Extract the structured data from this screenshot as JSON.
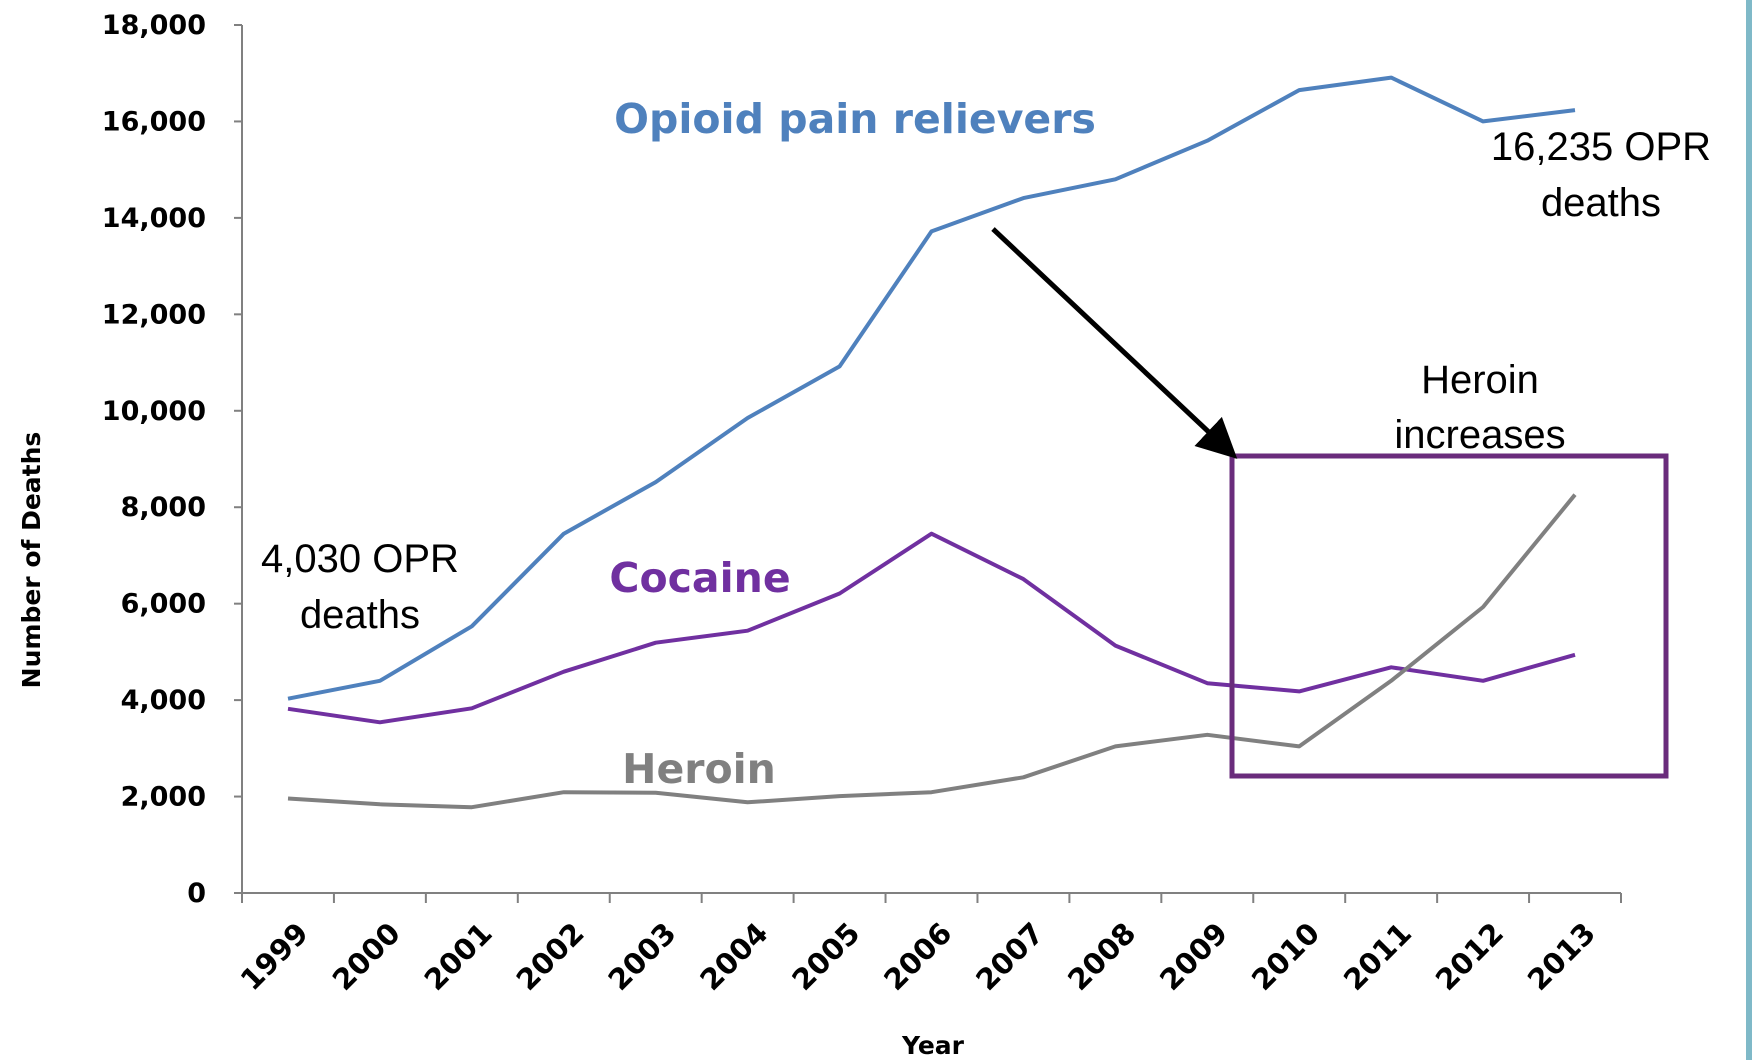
{
  "chart_data": {
    "type": "line",
    "title": "",
    "xlabel": "Year",
    "ylabel": "Number of Deaths",
    "categories": [
      "1999",
      "2000",
      "2001",
      "2002",
      "2003",
      "2004",
      "2005",
      "2006",
      "2007",
      "2008",
      "2009",
      "2010",
      "2011",
      "2012",
      "2013"
    ],
    "ylim": [
      0,
      18000
    ],
    "yticks": [
      "0",
      "2,000",
      "4,000",
      "6,000",
      "8,000",
      "10,000",
      "12,000",
      "14,000",
      "16,000",
      "18,000"
    ],
    "ytick_values": [
      0,
      2000,
      4000,
      6000,
      8000,
      10000,
      12000,
      14000,
      16000,
      18000
    ],
    "grid": false,
    "series": [
      {
        "name": "Opioid pain relievers",
        "color": "#4f81bd",
        "values": [
          4030,
          4400,
          5530,
          7450,
          8520,
          9850,
          10920,
          13720,
          14410,
          14800,
          15600,
          16650,
          16910,
          16000,
          16235
        ]
      },
      {
        "name": "Cocaine",
        "color": "#7030a0",
        "values": [
          3820,
          3540,
          3830,
          4590,
          5190,
          5440,
          6210,
          7450,
          6510,
          5130,
          4350,
          4180,
          4680,
          4400,
          4940
        ]
      },
      {
        "name": "Heroin",
        "color": "#808080",
        "values": [
          1960,
          1840,
          1780,
          2090,
          2080,
          1880,
          2010,
          2090,
          2400,
          3040,
          3280,
          3040,
          4400,
          5930,
          8260
        ]
      }
    ],
    "annotations": {
      "start_value": "4,030 OPR",
      "start_suffix": "deaths",
      "end_value": "16,235 OPR",
      "end_suffix": "deaths",
      "box_label_line1": "Heroin",
      "box_label_line2": "increases"
    },
    "box_color": "#6a2c7c",
    "arrow_color": "#000000"
  }
}
